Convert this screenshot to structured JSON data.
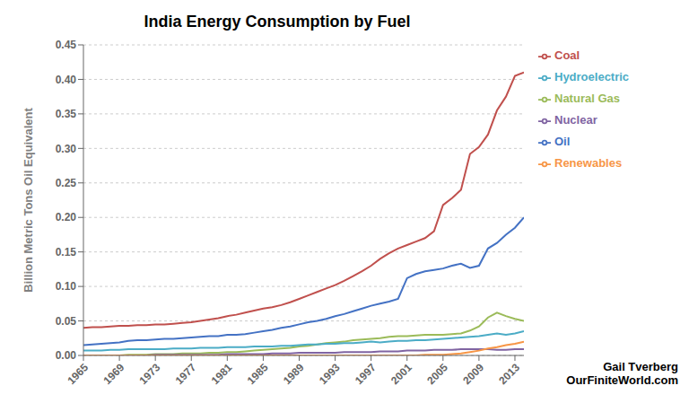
{
  "chart_data": {
    "type": "line",
    "title": "India Energy Consumption by Fuel",
    "ylabel": "Billion Metric Tons Oil Equivalent",
    "annotations": [
      "Gail Tverberg\nOurFiniteWorld.com"
    ],
    "x": [
      1965,
      1966,
      1967,
      1968,
      1969,
      1970,
      1971,
      1972,
      1973,
      1974,
      1975,
      1976,
      1977,
      1978,
      1979,
      1980,
      1981,
      1982,
      1983,
      1984,
      1985,
      1986,
      1987,
      1988,
      1989,
      1990,
      1991,
      1992,
      1993,
      1994,
      1995,
      1996,
      1997,
      1998,
      1999,
      2000,
      2001,
      2002,
      2003,
      2004,
      2005,
      2006,
      2007,
      2008,
      2009,
      2010,
      2011,
      2012,
      2013,
      2014
    ],
    "series": [
      {
        "name": "Oil",
        "color": "#4472C4",
        "values": [
          0.015,
          0.016,
          0.017,
          0.018,
          0.019,
          0.021,
          0.022,
          0.022,
          0.023,
          0.024,
          0.024,
          0.025,
          0.026,
          0.027,
          0.028,
          0.028,
          0.03,
          0.03,
          0.031,
          0.033,
          0.035,
          0.037,
          0.04,
          0.042,
          0.045,
          0.048,
          0.05,
          0.053,
          0.057,
          0.06,
          0.064,
          0.068,
          0.072,
          0.075,
          0.078,
          0.082,
          0.112,
          0.118,
          0.122,
          0.124,
          0.126,
          0.13,
          0.133,
          0.127,
          0.13,
          0.155,
          0.163,
          0.175,
          0.185,
          0.2
        ]
      },
      {
        "name": "Coal",
        "color": "#C0504D",
        "values": [
          0.04,
          0.041,
          0.041,
          0.042,
          0.043,
          0.043,
          0.044,
          0.044,
          0.045,
          0.045,
          0.046,
          0.047,
          0.048,
          0.05,
          0.052,
          0.054,
          0.057,
          0.059,
          0.062,
          0.065,
          0.068,
          0.07,
          0.073,
          0.077,
          0.082,
          0.087,
          0.092,
          0.097,
          0.102,
          0.108,
          0.115,
          0.122,
          0.13,
          0.14,
          0.148,
          0.155,
          0.16,
          0.165,
          0.17,
          0.18,
          0.218,
          0.228,
          0.24,
          0.292,
          0.302,
          0.32,
          0.355,
          0.375,
          0.405,
          0.41
        ]
      },
      {
        "name": "Natural Gas",
        "color": "#9BBB59",
        "values": [
          0.0,
          0.0,
          0.0,
          0.0,
          0.0,
          0.001,
          0.001,
          0.001,
          0.002,
          0.002,
          0.002,
          0.003,
          0.003,
          0.003,
          0.004,
          0.004,
          0.005,
          0.005,
          0.006,
          0.007,
          0.008,
          0.009,
          0.01,
          0.011,
          0.013,
          0.014,
          0.016,
          0.018,
          0.019,
          0.02,
          0.022,
          0.023,
          0.024,
          0.025,
          0.027,
          0.028,
          0.028,
          0.029,
          0.03,
          0.03,
          0.03,
          0.031,
          0.032,
          0.036,
          0.042,
          0.055,
          0.062,
          0.057,
          0.053,
          0.05
        ]
      },
      {
        "name": "Nuclear",
        "color": "#8064A2",
        "values": [
          0.0,
          0.0,
          0.0,
          0.0,
          0.0,
          0.0,
          0.0,
          0.0,
          0.001,
          0.001,
          0.001,
          0.001,
          0.001,
          0.001,
          0.001,
          0.001,
          0.002,
          0.002,
          0.002,
          0.002,
          0.002,
          0.003,
          0.003,
          0.003,
          0.004,
          0.004,
          0.004,
          0.004,
          0.004,
          0.005,
          0.005,
          0.005,
          0.005,
          0.006,
          0.006,
          0.006,
          0.007,
          0.007,
          0.007,
          0.008,
          0.008,
          0.008,
          0.009,
          0.009,
          0.009,
          0.009,
          0.008,
          0.008,
          0.009,
          0.009
        ]
      },
      {
        "name": "Hydroelectric",
        "color": "#4BACC6",
        "values": [
          0.007,
          0.007,
          0.007,
          0.008,
          0.008,
          0.009,
          0.009,
          0.009,
          0.009,
          0.009,
          0.01,
          0.01,
          0.01,
          0.011,
          0.011,
          0.011,
          0.012,
          0.012,
          0.012,
          0.013,
          0.013,
          0.013,
          0.014,
          0.014,
          0.015,
          0.016,
          0.016,
          0.017,
          0.017,
          0.018,
          0.018,
          0.019,
          0.02,
          0.019,
          0.02,
          0.021,
          0.021,
          0.022,
          0.022,
          0.023,
          0.024,
          0.025,
          0.026,
          0.027,
          0.028,
          0.03,
          0.032,
          0.03,
          0.032,
          0.035
        ]
      },
      {
        "name": "Renewables",
        "color": "#F79646",
        "values": [
          0.0,
          0.0,
          0.0,
          0.0,
          0.0,
          0.0,
          0.0,
          0.0,
          0.0,
          0.0,
          0.0,
          0.0,
          0.0,
          0.0,
          0.0,
          0.0,
          0.0,
          0.0,
          0.0,
          0.0,
          0.0,
          0.0,
          0.0,
          0.0,
          0.0,
          0.0,
          0.0,
          0.0,
          0.0,
          0.0,
          0.0,
          0.0,
          0.0,
          0.0,
          0.0,
          0.0,
          0.0,
          0.0,
          0.001,
          0.001,
          0.001,
          0.002,
          0.003,
          0.005,
          0.007,
          0.01,
          0.012,
          0.015,
          0.017,
          0.02
        ]
      }
    ],
    "xlim": [
      1965,
      2014
    ],
    "xticks": [
      1965,
      1969,
      1973,
      1977,
      1981,
      1985,
      1989,
      1993,
      1997,
      2001,
      2005,
      2009,
      2013
    ],
    "ylim": [
      0,
      0.45
    ],
    "yticks": [
      {
        "value": 0,
        "label": "0.00"
      },
      0.05,
      {
        "value": 0.1,
        "label": "0.10"
      },
      0.15,
      {
        "value": 0.2,
        "label": "0.20"
      },
      0.25,
      {
        "value": 0.3,
        "label": "0.30"
      },
      0.35,
      {
        "value": 0.4,
        "label": "0.40"
      },
      0.45
    ],
    "grid": true,
    "legend": "right"
  }
}
